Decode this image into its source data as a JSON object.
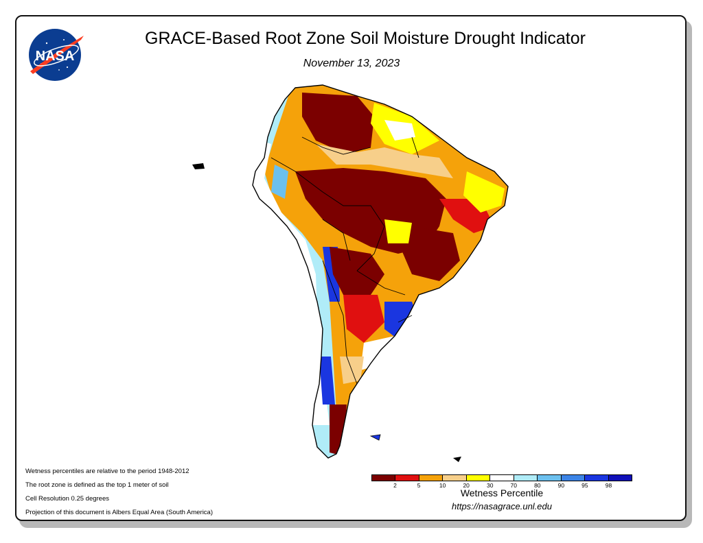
{
  "header": {
    "title": "GRACE-Based Root Zone Soil Moisture Drought Indicator",
    "date": "November 13, 2023",
    "logo_text": "NASA"
  },
  "notes": [
    "Wetness percentiles are relative to the period 1948-2012",
    "The root zone is defined as the top 1 meter of soil",
    "Cell Resolution 0.25 degrees",
    "Projection of this document is Albers Equal Area (South America)"
  ],
  "legend": {
    "title": "Wetness Percentile",
    "colors": [
      "#7b0000",
      "#e01010",
      "#f5a20a",
      "#f7cf8a",
      "#ffff00",
      "#ffffff",
      "#b0ecf8",
      "#6cc0ee",
      "#3c84e6",
      "#1a36e0",
      "#1010b8"
    ],
    "ticks": [
      "2",
      "5",
      "10",
      "20",
      "30",
      "70",
      "80",
      "90",
      "95",
      "98"
    ]
  },
  "footer": {
    "url": "https://nasagrace.unl.edu"
  },
  "map": {
    "region": "South America",
    "category_colors": {
      "extreme_dry": "#7b0000",
      "severe_dry": "#e01010",
      "moderate_dry": "#f5a20a",
      "abnormally_dry": "#f7cf8a",
      "dry": "#ffff00",
      "normal": "#ffffff",
      "wet": "#b0ecf8",
      "very_wet": "#6cc0ee",
      "extreme_wet": "#1a36e0"
    }
  }
}
